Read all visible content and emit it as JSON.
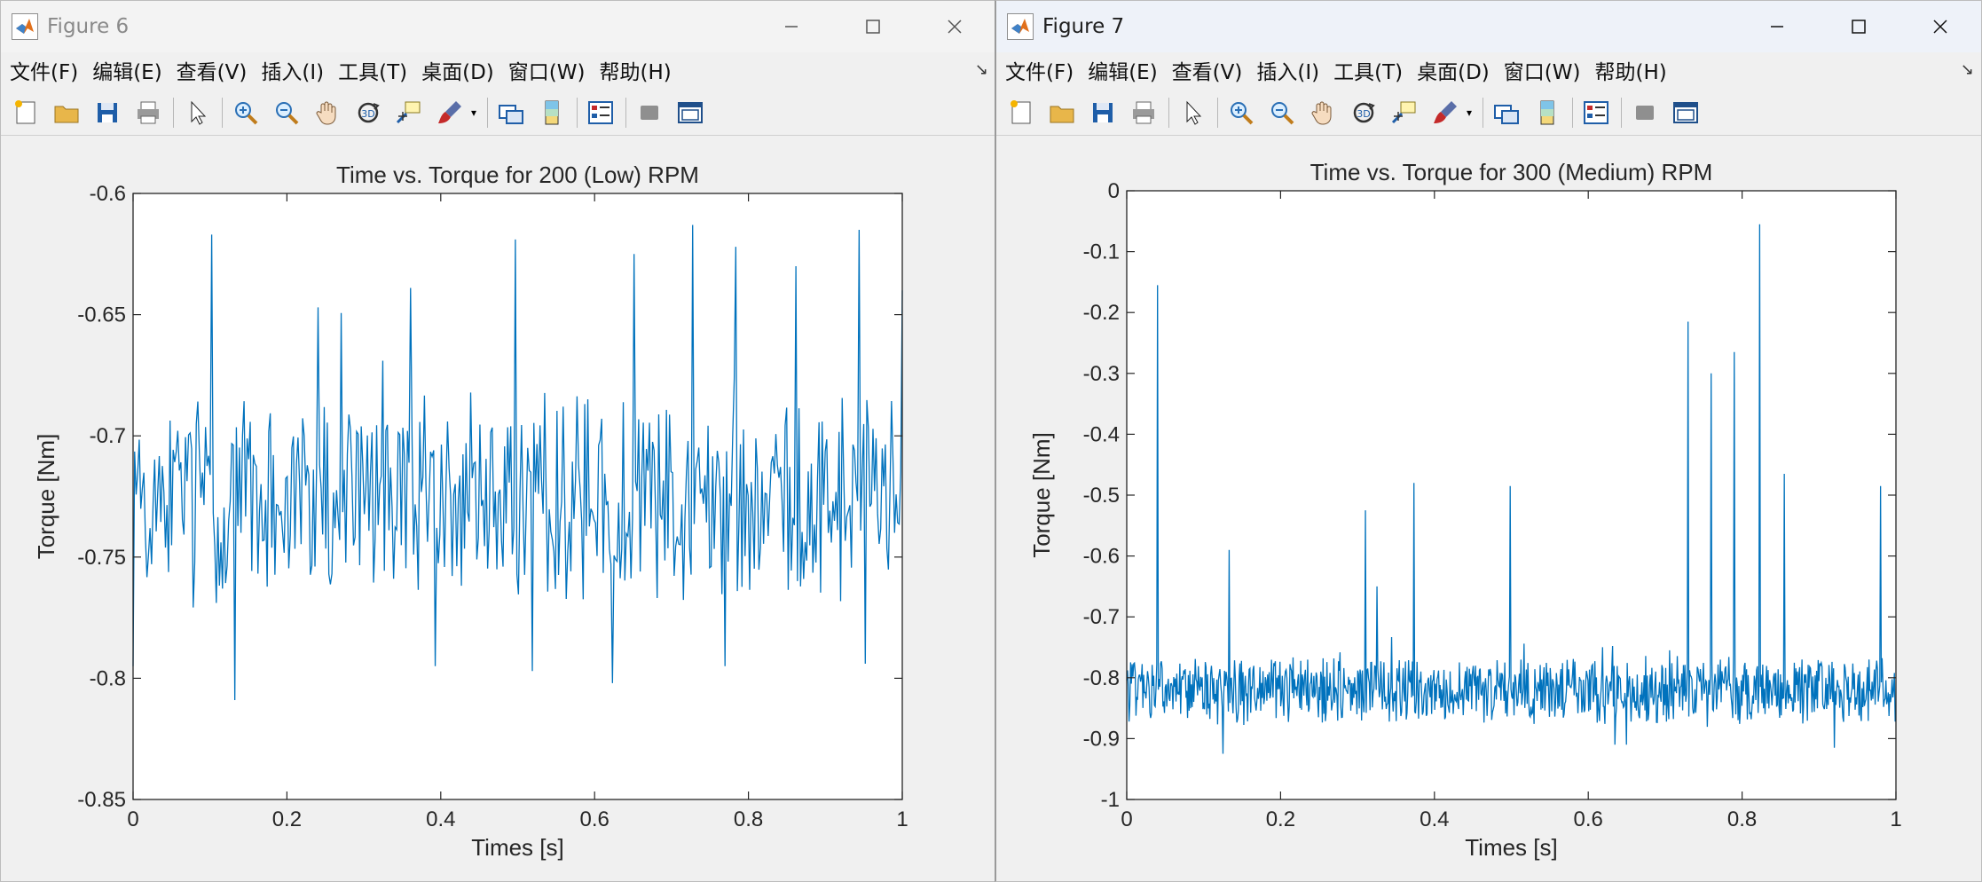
{
  "menu_labels": [
    "文件(F)",
    "编辑(E)",
    "查看(V)",
    "插入(I)",
    "工具(T)",
    "桌面(D)",
    "窗口(W)",
    "帮助(H)"
  ],
  "toolbar_icons": [
    "new-figure-icon",
    "open-file-icon",
    "save-icon",
    "print-icon",
    "select-arrow-icon",
    "zoom-in-icon",
    "zoom-out-icon",
    "pan-hand-icon",
    "rotate-3d-icon",
    "data-cursor-icon",
    "brush-icon",
    "link-plot-icon",
    "colorbar-icon",
    "legend-icon",
    "hide-tools-icon",
    "dock-icon"
  ],
  "colors": {
    "line": "#0072bd",
    "axes_bg": "#ffffff",
    "figure_bg": "#f0f0f0",
    "axis": "#262626"
  },
  "window_controls": {
    "minimize": "—",
    "maximize": "☐",
    "close": "✕"
  },
  "figures": [
    {
      "window_title": "Figure 6",
      "active": false,
      "chart_data": {
        "type": "line",
        "title": "Time vs. Torque for 200 (Low) RPM",
        "xlabel": "Times [s]",
        "ylabel": "Torque [Nm]",
        "xlim": [
          0,
          1
        ],
        "ylim": [
          -0.85,
          -0.6
        ],
        "xticks": [
          0,
          0.2,
          0.4,
          0.6,
          0.8,
          1
        ],
        "xtick_labels": [
          "0",
          "0.2",
          "0.4",
          "0.6",
          "0.8",
          "1"
        ],
        "yticks": [
          -0.85,
          -0.8,
          -0.75,
          -0.7,
          -0.65,
          -0.6
        ],
        "ytick_labels": [
          "-0.85",
          "-0.8",
          "-0.75",
          "-0.7",
          "-0.65",
          "-0.6"
        ],
        "grid": false,
        "series": [
          {
            "x_start": 0,
            "x_end": 1,
            "y_mean": -0.725,
            "y_noise": 0.022,
            "y_min": -0.809,
            "y_max": -0.613,
            "num_points": 500,
            "spikes": [
              [
                0.0,
                -0.795
              ],
              [
                0.103,
                -0.617
              ],
              [
                0.132,
                -0.809
              ],
              [
                0.24,
                -0.647
              ],
              [
                0.325,
                -0.669
              ],
              [
                0.36,
                -0.639
              ],
              [
                0.393,
                -0.795
              ],
              [
                0.497,
                -0.619
              ],
              [
                0.52,
                -0.797
              ],
              [
                0.623,
                -0.802
              ],
              [
                0.652,
                -0.625
              ],
              [
                0.728,
                -0.613
              ],
              [
                0.77,
                -0.795
              ],
              [
                0.784,
                -0.622
              ],
              [
                0.861,
                -0.63
              ],
              [
                0.944,
                -0.615
              ],
              [
                0.952,
                -0.794
              ],
              [
                0.99,
                -0.74
              ],
              [
                1.0,
                -0.64
              ]
            ]
          }
        ]
      }
    },
    {
      "window_title": "Figure 7",
      "active": true,
      "chart_data": {
        "type": "line",
        "title": "Time vs. Torque for 300 (Medium) RPM",
        "xlabel": "Times [s]",
        "ylabel": "Torque [Nm]",
        "xlim": [
          0,
          1
        ],
        "ylim": [
          -1,
          0
        ],
        "xticks": [
          0,
          0.2,
          0.4,
          0.6,
          0.8,
          1
        ],
        "xtick_labels": [
          "0",
          "0.2",
          "0.4",
          "0.6",
          "0.8",
          "1"
        ],
        "yticks": [
          -1,
          -0.9,
          -0.8,
          -0.7,
          -0.6,
          -0.5,
          -0.4,
          -0.3,
          -0.2,
          -0.1,
          0
        ],
        "ytick_labels": [
          "-1",
          "-0.9",
          "-0.8",
          "-0.7",
          "-0.6",
          "-0.5",
          "-0.4",
          "-0.3",
          "-0.2",
          "-0.1",
          "0"
        ],
        "grid": false,
        "series": [
          {
            "x_start": 0,
            "x_end": 1,
            "y_mean": -0.82,
            "y_noise": 0.028,
            "y_min": -0.93,
            "y_max": -0.055,
            "num_points": 1000,
            "spikes": [
              [
                0.04,
                -0.155
              ],
              [
                0.133,
                -0.59
              ],
              [
                0.31,
                -0.525
              ],
              [
                0.325,
                -0.65
              ],
              [
                0.373,
                -0.48
              ],
              [
                0.498,
                -0.485
              ],
              [
                0.73,
                -0.215
              ],
              [
                0.76,
                -0.3
              ],
              [
                0.79,
                -0.265
              ],
              [
                0.823,
                -0.055
              ],
              [
                0.855,
                -0.465
              ],
              [
                0.98,
                -0.485
              ],
              [
                0.125,
                -0.925
              ],
              [
                0.65,
                -0.91
              ],
              [
                0.92,
                -0.915
              ]
            ]
          }
        ]
      }
    }
  ]
}
